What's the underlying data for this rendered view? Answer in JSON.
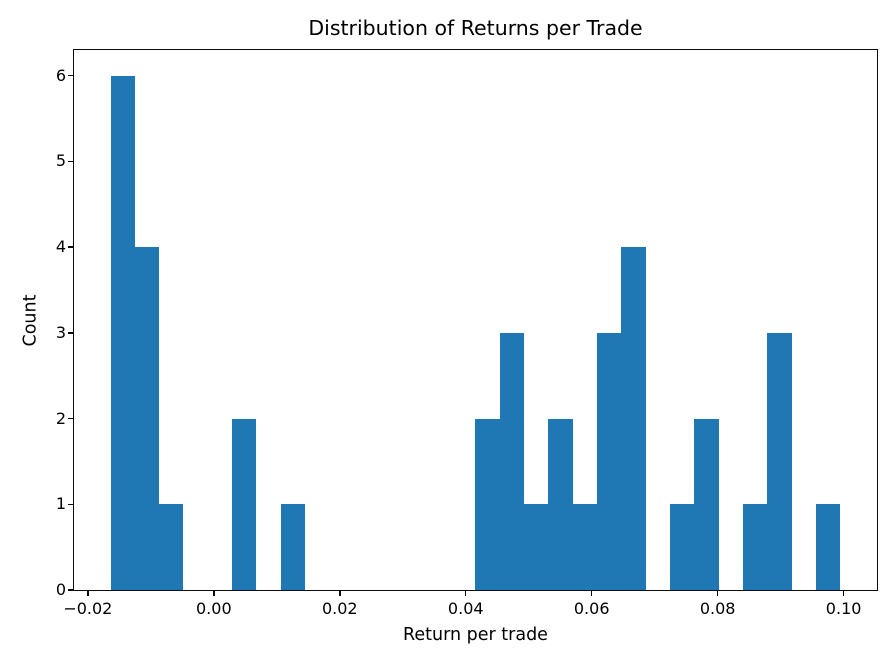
{
  "chart_data": {
    "type": "bar",
    "subtype": "histogram",
    "title": "Distribution of Returns per Trade",
    "xlabel": "Return per trade",
    "ylabel": "Count",
    "bar_color": "#1f77b4",
    "axis_color": "#0c0c0c",
    "background_color": "#ffffff",
    "grid": false,
    "legend": null,
    "bin_start": -0.0164,
    "bin_width": 0.003862,
    "counts": [
      6,
      4,
      1,
      0,
      0,
      2,
      0,
      1,
      0,
      0,
      0,
      0,
      0,
      0,
      0,
      2,
      3,
      1,
      2,
      1,
      3,
      4,
      0,
      1,
      2,
      0,
      1,
      3,
      0,
      1
    ],
    "xlim": [
      -0.0222,
      0.1053
    ],
    "ylim": [
      0,
      6.3
    ],
    "xticks": [
      {
        "value": -0.02,
        "label": "−0.02"
      },
      {
        "value": 0.0,
        "label": "0.00"
      },
      {
        "value": 0.02,
        "label": "0.02"
      },
      {
        "value": 0.04,
        "label": "0.04"
      },
      {
        "value": 0.06,
        "label": "0.06"
      },
      {
        "value": 0.08,
        "label": "0.08"
      },
      {
        "value": 0.1,
        "label": "0.10"
      }
    ],
    "yticks": [
      {
        "value": 0,
        "label": "0"
      },
      {
        "value": 1,
        "label": "1"
      },
      {
        "value": 2,
        "label": "2"
      },
      {
        "value": 3,
        "label": "3"
      },
      {
        "value": 4,
        "label": "4"
      },
      {
        "value": 5,
        "label": "5"
      },
      {
        "value": 6,
        "label": "6"
      }
    ]
  }
}
